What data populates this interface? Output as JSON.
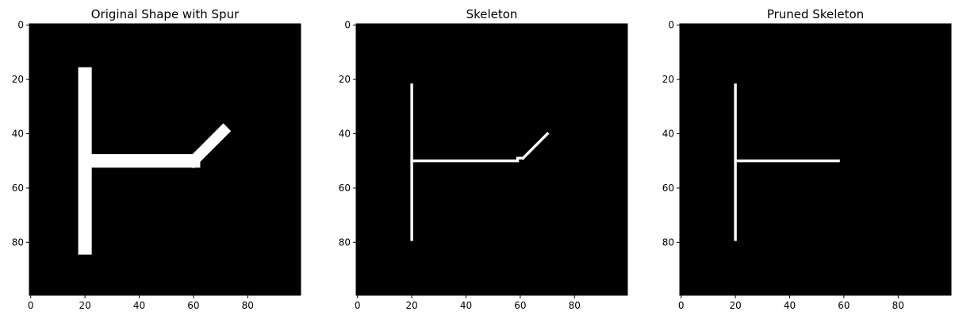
{
  "chart_data": [
    {
      "type": "heatmap",
      "title": "Original Shape with Spur",
      "colormap": [
        "#000000",
        "#ffffff"
      ],
      "xlim": [
        -0.5,
        99.5
      ],
      "ylim": [
        99.5,
        -0.5
      ],
      "x_ticks": [
        0,
        20,
        40,
        60,
        80
      ],
      "y_ticks": [
        0,
        20,
        40,
        60,
        80
      ],
      "segments": [
        {
          "from": [
            20,
            18
          ],
          "to": [
            20,
            82
          ],
          "width": 5
        },
        {
          "from": [
            22,
            50
          ],
          "to": [
            60,
            50
          ],
          "width": 5
        },
        {
          "from": [
            60,
            50
          ],
          "to": [
            71,
            39
          ],
          "width": 4
        }
      ]
    },
    {
      "type": "heatmap",
      "title": "Skeleton",
      "colormap": [
        "#000000",
        "#ffffff"
      ],
      "xlim": [
        -0.5,
        99.5
      ],
      "ylim": [
        99.5,
        -0.5
      ],
      "x_ticks": [
        0,
        20,
        40,
        60,
        80
      ],
      "y_ticks": [
        0,
        20,
        40,
        60,
        80
      ],
      "segments": [
        {
          "from": [
            20,
            22
          ],
          "to": [
            20,
            79
          ],
          "width": 1
        },
        {
          "from": [
            20,
            50
          ],
          "to": [
            59,
            50
          ],
          "width": 1
        },
        {
          "from": [
            59,
            49
          ],
          "to": [
            61,
            49
          ],
          "width": 1
        },
        {
          "from": [
            61,
            49
          ],
          "to": [
            70,
            40
          ],
          "width": 1
        }
      ]
    },
    {
      "type": "heatmap",
      "title": "Pruned Skeleton",
      "colormap": [
        "#000000",
        "#ffffff"
      ],
      "xlim": [
        -0.5,
        99.5
      ],
      "ylim": [
        99.5,
        -0.5
      ],
      "x_ticks": [
        0,
        20,
        40,
        60,
        80
      ],
      "y_ticks": [
        0,
        20,
        40,
        60,
        80
      ],
      "segments": [
        {
          "from": [
            20,
            22
          ],
          "to": [
            20,
            79
          ],
          "width": 1
        },
        {
          "from": [
            20,
            50
          ],
          "to": [
            58,
            50
          ],
          "width": 1
        }
      ]
    }
  ]
}
